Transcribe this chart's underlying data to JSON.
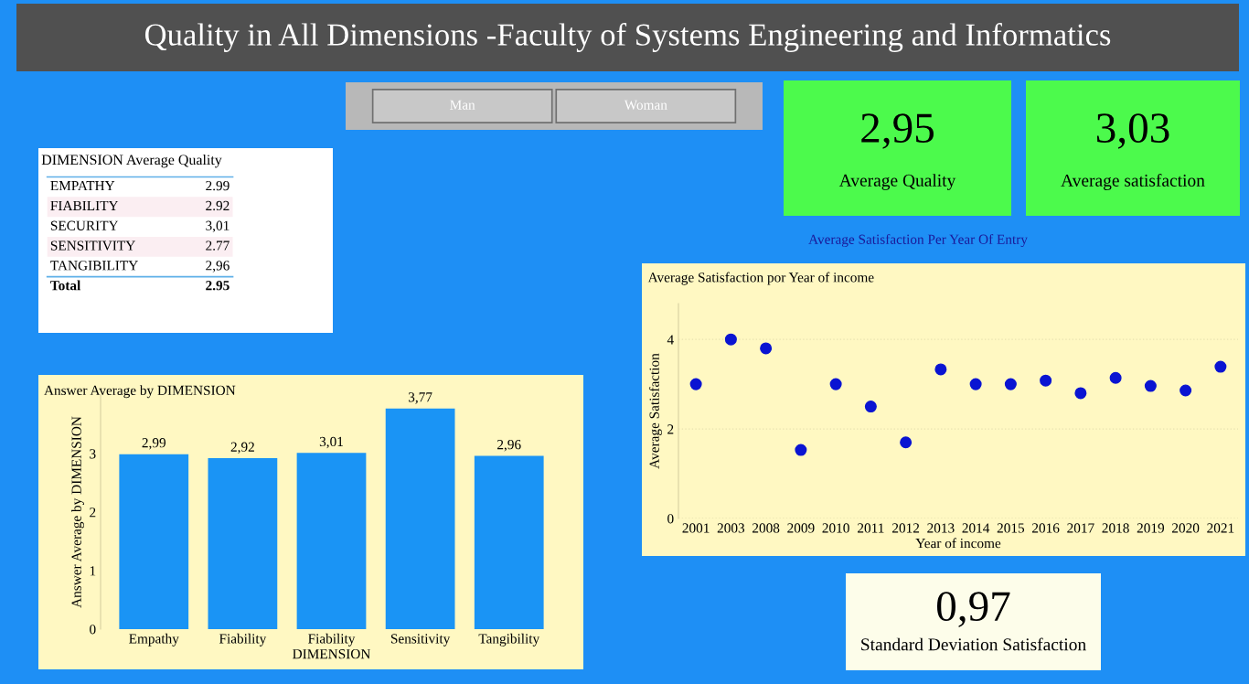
{
  "chart_data": [
    {
      "type": "other",
      "title": "Quality in All Dimensions -Faculty of Systems Engineering and Informatics",
      "annotations": [
        "Man",
        "Woman"
      ]
    },
    {
      "type": "other",
      "annotations": [
        "2,95",
        "Average Quality"
      ]
    },
    {
      "type": "other",
      "annotations": [
        "3,03",
        "Average satisfaction"
      ]
    },
    {
      "type": "other",
      "title": "DIMENSION Average Quality",
      "annotations": [
        "EMPATHY",
        "2.99",
        "FIABILITY",
        "2.92",
        "SECURITY",
        "3,01",
        "SENSITIVITY",
        "2.77",
        "TANGIBILITY",
        "2,96",
        "Total",
        "2.95"
      ]
    },
    {
      "type": "bar",
      "title": "Answer Average by DIMENSION",
      "xlabel": "DIMENSION",
      "ylabel": "Answer Average by DIMENSION",
      "categories": [
        "Empathy",
        "Fiability",
        "Fiability",
        "Sensitivity",
        "Tangibility"
      ],
      "values": [
        2.99,
        2.92,
        3.01,
        3.77,
        2.96
      ],
      "value_labels": [
        "2,99",
        "2,92",
        "3,01",
        "3,77",
        "2,96"
      ],
      "color": "#1a94f5",
      "ylim": [
        0,
        4
      ],
      "yticks": [
        0,
        1,
        2,
        3
      ],
      "grid": false
    },
    {
      "type": "scatter",
      "title": "Average Satisfaction por Year of income",
      "xlabel": "Year of income",
      "ylabel": "Average Satisfaction",
      "annotations": [
        "Average Satisfaction Per Year Of Entry"
      ],
      "categories": [
        "2001",
        "2003",
        "2008",
        "2009",
        "2010",
        "2011",
        "2012",
        "2013",
        "2014",
        "2015",
        "2016",
        "2017",
        "2018",
        "2019",
        "2020",
        "2021"
      ],
      "values": [
        3.0,
        4.0,
        3.8,
        1.53,
        3.0,
        2.5,
        1.7,
        3.33,
        3.0,
        3.0,
        3.08,
        2.8,
        3.14,
        2.96,
        2.86,
        3.39
      ],
      "color": "#0a14d2",
      "marker": "circle",
      "ylim": [
        0,
        4.8
      ],
      "yticks": [
        0,
        2,
        4
      ],
      "grid": "y"
    },
    {
      "type": "other",
      "annotations": [
        "0,97",
        "Standard Deviation Satisfaction"
      ]
    }
  ]
}
